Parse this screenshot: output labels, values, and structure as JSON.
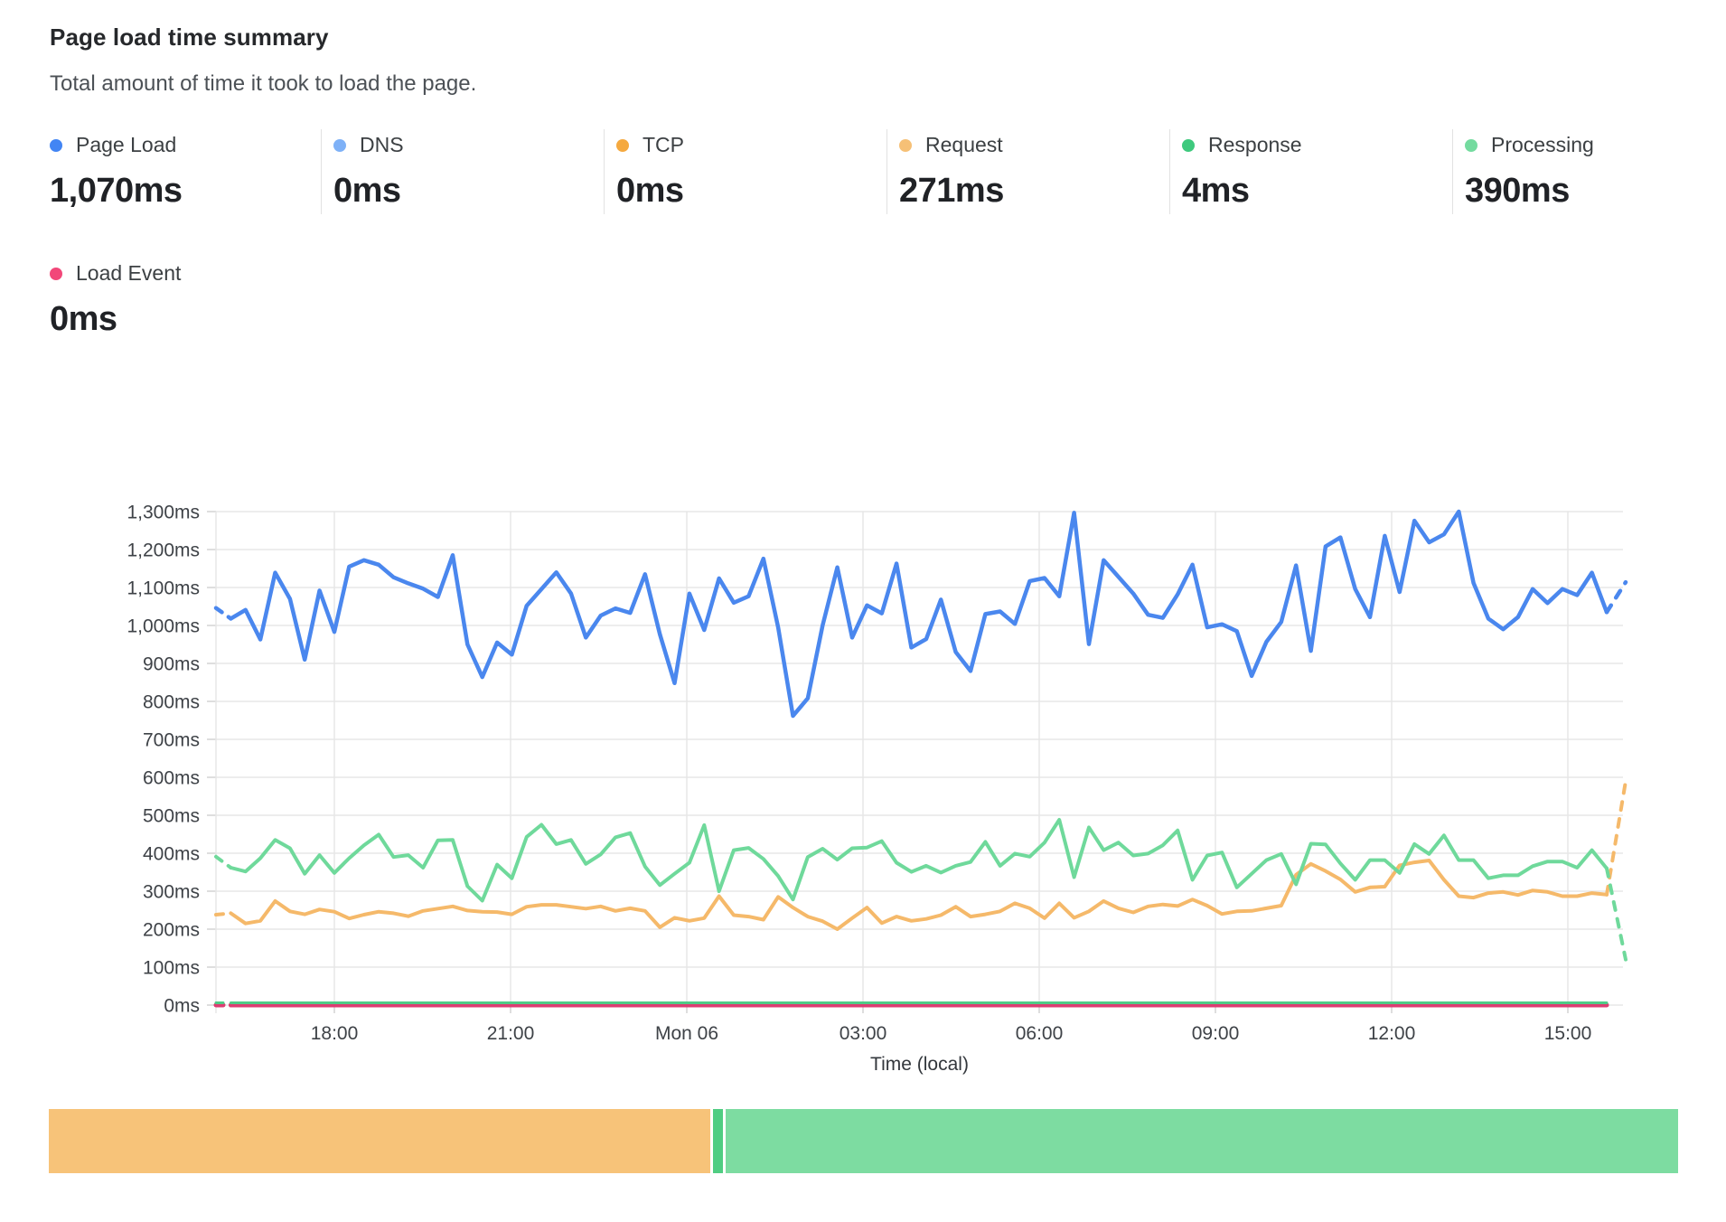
{
  "header": {
    "title": "Page load time summary",
    "subtitle": "Total amount of time it took to load the page."
  },
  "metrics": [
    {
      "label": "Page Load",
      "value": "1,070ms",
      "dot_color": "#4285f4"
    },
    {
      "label": "DNS",
      "value": "0ms",
      "dot_color": "#7eb1f7"
    },
    {
      "label": "TCP",
      "value": "0ms",
      "dot_color": "#f5a93f"
    },
    {
      "label": "Request",
      "value": "271ms",
      "dot_color": "#f6c076"
    },
    {
      "label": "Response",
      "value": "4ms",
      "dot_color": "#3ec97d"
    },
    {
      "label": "Processing",
      "value": "390ms",
      "dot_color": "#74db9f"
    }
  ],
  "metrics_row2": [
    {
      "label": "Load Event",
      "value": "0ms",
      "dot_color": "#f24779"
    }
  ],
  "chart_data": {
    "type": "line",
    "title": "",
    "xlabel": "Time (local)",
    "ylabel": "",
    "ylim": [
      0,
      1300
    ],
    "grid": true,
    "legend_position": "top-cards",
    "y_ticks": [
      "0ms",
      "100ms",
      "200ms",
      "300ms",
      "400ms",
      "500ms",
      "600ms",
      "700ms",
      "800ms",
      "900ms",
      "1,000ms",
      "1,100ms",
      "1,200ms",
      "1,300ms"
    ],
    "x_ticks": [
      "18:00",
      "21:00",
      "Mon 06",
      "03:00",
      "06:00",
      "09:00",
      "12:00",
      "15:00"
    ],
    "series": [
      {
        "name": "Request",
        "color": "#f5b96a",
        "width": 4,
        "values": [
          238,
          242,
          215,
          222,
          274,
          247,
          239,
          252,
          246,
          228,
          238,
          246,
          242,
          234,
          248,
          254,
          260,
          249,
          246,
          245,
          239,
          259,
          264,
          264,
          259,
          254,
          260,
          248,
          255,
          248,
          205,
          230,
          222,
          229,
          287,
          237,
          233,
          225,
          285,
          257,
          233,
          221,
          200,
          229,
          257,
          216,
          233,
          222,
          227,
          237,
          259,
          233,
          239,
          247,
          268,
          255,
          229,
          268,
          230,
          247,
          274,
          255,
          244,
          260,
          265,
          261,
          278,
          262,
          240,
          247,
          248,
          255,
          262,
          343,
          372,
          353,
          331,
          298,
          310,
          312,
          368,
          376,
          381,
          330,
          287,
          283,
          295,
          298,
          290,
          302,
          298,
          287,
          287,
          295,
          291
        ],
        "start_dash": true,
        "end_dash_value": 590
      },
      {
        "name": "Processing",
        "color": "#6fd99b",
        "width": 4,
        "values": [
          391,
          362,
          352,
          387,
          435,
          413,
          346,
          395,
          348,
          387,
          421,
          449,
          390,
          395,
          362,
          434,
          435,
          313,
          275,
          370,
          334,
          443,
          475,
          424,
          435,
          372,
          397,
          442,
          453,
          365,
          316,
          346,
          375,
          474,
          300,
          408,
          414,
          385,
          340,
          278,
          390,
          412,
          383,
          413,
          415,
          432,
          375,
          351,
          367,
          349,
          367,
          377,
          430,
          367,
          399,
          391,
          428,
          488,
          337,
          468,
          408,
          428,
          394,
          399,
          421,
          460,
          330,
          394,
          402,
          310,
          346,
          382,
          398,
          318,
          425,
          423,
          373,
          330,
          382,
          382,
          348,
          424,
          398,
          447,
          382,
          382,
          334,
          342,
          342,
          366,
          378,
          378,
          362,
          408,
          360
        ],
        "start_dash": true,
        "end_dash_value": 120
      },
      {
        "name": "Page Load",
        "color": "#4a87ee",
        "width": 4.5,
        "values": [
          1046,
          1018,
          1041,
          963,
          1139,
          1070,
          910,
          1092,
          983,
          1155,
          1172,
          1160,
          1127,
          1111,
          1097,
          1075,
          1185,
          950,
          864,
          955,
          923,
          1052,
          1096,
          1140,
          1084,
          968,
          1026,
          1045,
          1033,
          1135,
          977,
          848,
          1084,
          988,
          1124,
          1060,
          1077,
          1176,
          995,
          762,
          808,
          1000,
          1153,
          968,
          1053,
          1032,
          1163,
          942,
          964,
          1068,
          930,
          880,
          1030,
          1037,
          1004,
          1117,
          1125,
          1077,
          1297,
          951,
          1172,
          1128,
          1084,
          1028,
          1020,
          1082,
          1160,
          995,
          1003,
          985,
          867,
          957,
          1009,
          1158,
          933,
          1208,
          1232,
          1096,
          1022,
          1236,
          1088,
          1276,
          1219,
          1240,
          1300,
          1112,
          1018,
          990,
          1022,
          1096,
          1059,
          1096,
          1080,
          1139,
          1035
        ],
        "start_dash": true,
        "end_dash_value": 1114
      },
      {
        "name": "Load Event",
        "color": "#dc3d72",
        "width": 5,
        "flat": 0,
        "points": 95,
        "start_dash": true
      },
      {
        "name": "Response",
        "color": "#4fcb86",
        "width": 3,
        "flat": 6,
        "points": 95,
        "start_dash": true
      }
    ]
  },
  "stacked_bar": {
    "segments": [
      {
        "name": "Request",
        "value": 271,
        "color": "#f7c379"
      },
      {
        "name": "Response",
        "value": 4,
        "color": "#50cd82"
      },
      {
        "name": "Processing",
        "value": 390,
        "color": "#7ddca1"
      }
    ]
  }
}
